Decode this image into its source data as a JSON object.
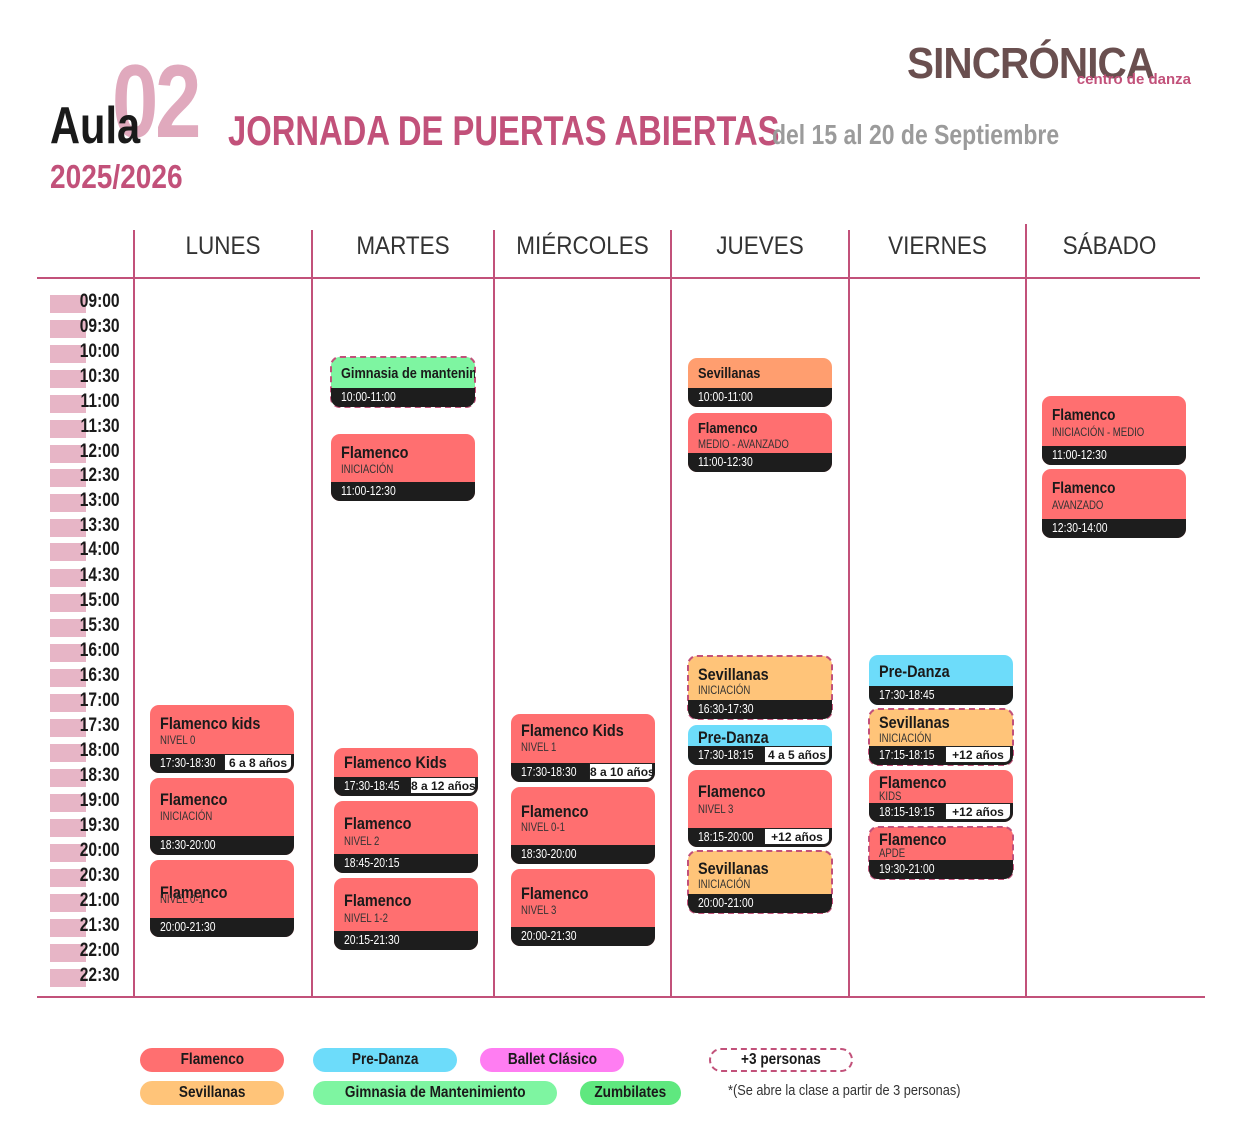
{
  "header": {
    "aula_word": "Aula",
    "aula_number": "02",
    "year": "2025/2026",
    "headline": "JORNADA DE PUERTAS ABIERTAS",
    "dates": "del 15 al 20 de Septiembre",
    "logo_name": "SINCRÓNICA",
    "logo_sub": "centro de danza"
  },
  "days": [
    "LUNES",
    "MARTES",
    "MIÉRCOLES",
    "JUEVES",
    "VIERNES",
    "SÁBADO"
  ],
  "times": [
    "09:00",
    "09:30",
    "10:00",
    "10:30",
    "11:00",
    "11:30",
    "12:00",
    "12:30",
    "13:00",
    "13:30",
    "14:00",
    "14:30",
    "15:00",
    "15:30",
    "16:00",
    "16:30",
    "17:00",
    "17:30",
    "18:00",
    "18:30",
    "19:00",
    "19:30",
    "20:00",
    "20:30",
    "21:00",
    "21:30",
    "22:00",
    "22:30"
  ],
  "classes": {
    "lunes": [
      {
        "name": "Flamenco kids",
        "level": "NIVEL 0",
        "time": "17:30-18:30",
        "age": "6 a 8 años"
      },
      {
        "name": "Flamenco",
        "level": "INICIACIÓN",
        "time": "18:30-20:00"
      },
      {
        "name": "Flamenco",
        "level": "NIVEL 0-1",
        "time": "20:00-21:30"
      }
    ],
    "martes": [
      {
        "name": "Gimnasia de mantenimiento",
        "time": "10:00-11:00"
      },
      {
        "name": "Flamenco",
        "level": "INICIACIÓN",
        "time": "11:00-12:30"
      },
      {
        "name": "Flamenco Kids",
        "time": "17:30-18:45",
        "age": "8 a 12 años"
      },
      {
        "name": "Flamenco",
        "level": "NIVEL 2",
        "time": "18:45-20:15"
      },
      {
        "name": "Flamenco",
        "level": "NIVEL 1-2",
        "time": "20:15-21:30"
      }
    ],
    "miercoles": [
      {
        "name": "Flamenco Kids",
        "level": "NIVEL 1",
        "time": "17:30-18:30",
        "age": "8 a 10 años"
      },
      {
        "name": "Flamenco",
        "level": "NIVEL 0-1",
        "time": "18:30-20:00"
      },
      {
        "name": "Flamenco",
        "level": "NIVEL 3",
        "time": "20:00-21:30"
      }
    ],
    "jueves": [
      {
        "name": "Sevillanas",
        "time": "10:00-11:00"
      },
      {
        "name": "Flamenco",
        "level": "MEDIO - AVANZADO",
        "time": "11:00-12:30"
      },
      {
        "name": "Sevillanas",
        "level": "INICIACIÓN",
        "time": "16:30-17:30"
      },
      {
        "name": "Pre-Danza",
        "time": "17:30-18:15",
        "age": "4 a 5 años"
      },
      {
        "name": "Flamenco",
        "level": "NIVEL 3",
        "time": "18:15-20:00",
        "age": "+12 años"
      },
      {
        "name": "Sevillanas",
        "level": "INICIACIÓN",
        "time": "20:00-21:00"
      }
    ],
    "viernes": [
      {
        "name": "Pre-Danza",
        "time": "17:30-18:45"
      },
      {
        "name": "Sevillanas",
        "level": "INICIACIÓN",
        "time": "17:15-18:15",
        "age": "+12 años"
      },
      {
        "name": "Flamenco",
        "level": "KIDS",
        "time": "18:15-19:15",
        "age": "+12 años"
      },
      {
        "name": "Flamenco",
        "level": "APDE",
        "time": "19:30-21:00"
      }
    ],
    "sabado": [
      {
        "name": "Flamenco",
        "level": "INICIACIÓN - MEDIO",
        "time": "11:00-12:30"
      },
      {
        "name": "Flamenco",
        "level": "AVANZADO",
        "time": "12:30-14:00"
      }
    ]
  },
  "legend": {
    "flamenco": "Flamenco",
    "predanza": "Pre-Danza",
    "ballet": "Ballet Clásico",
    "min_people": "+3 personas",
    "sevillanas": "Sevillanas",
    "gimnasia": "Gimnasia de Mantenimiento",
    "zumbilates": "Zumbilates",
    "note": "*(Se abre la clase a partir de 3 personas)"
  },
  "colors": {
    "accent": "#c2517a",
    "flamenco": "#ff6f70",
    "predanza": "#6ddcfa",
    "ballet": "#ff7df2",
    "sevillanas": "#ffc479",
    "gimnasia": "#7ef5a1",
    "zumbilates": "#5fe87f"
  }
}
